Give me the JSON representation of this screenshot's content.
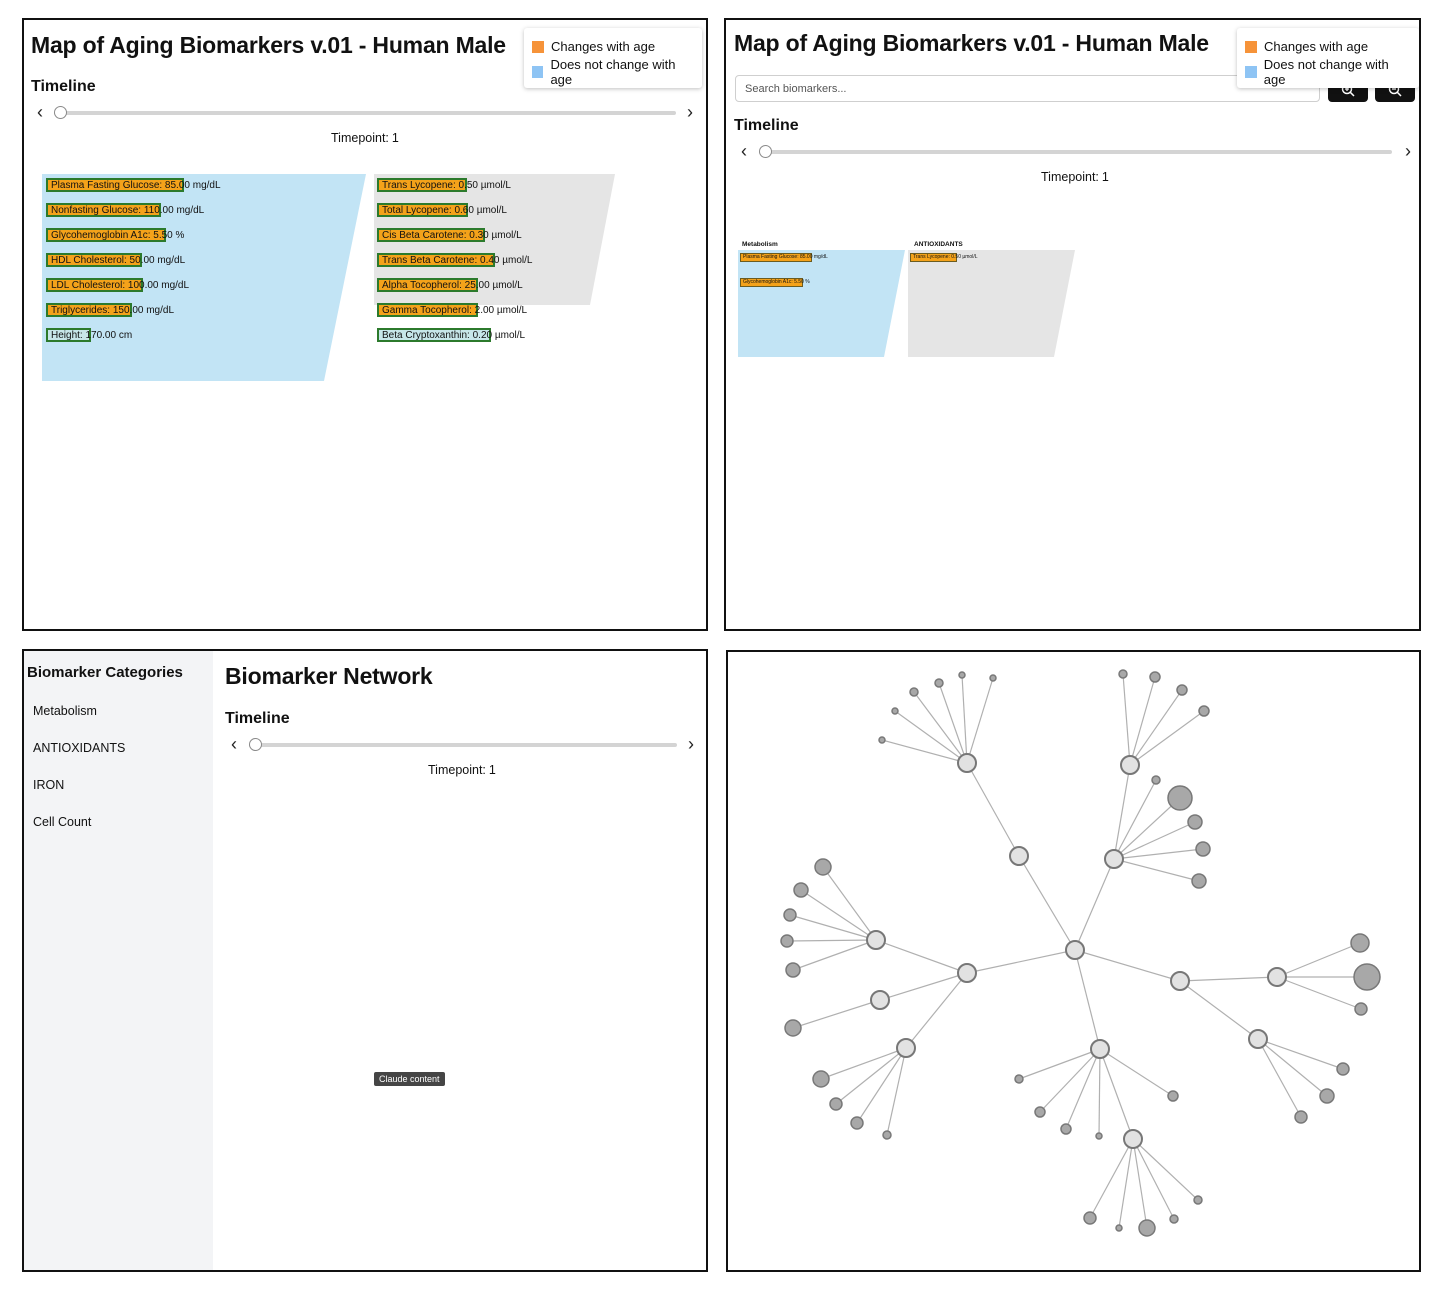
{
  "legend": {
    "changes": "Changes with age",
    "no_change": "Does not change with age",
    "colors": {
      "changes": "#f69339",
      "no_change": "#8ec4f4"
    }
  },
  "panel1": {
    "title": "Map of Aging Biomarkers v.01 - Human Male",
    "timeline_label": "Timeline",
    "timepoint_label": "Timepoint:",
    "timepoint_value": "1",
    "metabolism": [
      {
        "label": "Plasma Fasting Glucose: 85.00 mg/dL",
        "changes": true
      },
      {
        "label": "Nonfasting Glucose: 110.00 mg/dL",
        "changes": true
      },
      {
        "label": "Glycohemoglobin A1c: 5.50 %",
        "changes": true
      },
      {
        "label": "HDL Cholesterol: 50.00 mg/dL",
        "changes": true
      },
      {
        "label": "LDL Cholesterol: 100.00 mg/dL",
        "changes": true
      },
      {
        "label": "Triglycerides: 150.00 mg/dL",
        "changes": true
      },
      {
        "label": "Height: 170.00 cm",
        "changes": false
      }
    ],
    "antioxidants": [
      {
        "label": "Trans Lycopene: 0.50 µmol/L",
        "changes": true
      },
      {
        "label": "Total Lycopene: 0.60 µmol/L",
        "changes": true
      },
      {
        "label": "Cis Beta Carotene: 0.30 µmol/L",
        "changes": true
      },
      {
        "label": "Trans Beta Carotene: 0.40 µmol/L",
        "changes": true
      },
      {
        "label": "Alpha Tocopherol: 25.00 µmol/L",
        "changes": true
      },
      {
        "label": "Gamma Tocopherol: 2.00 µmol/L",
        "changes": true
      },
      {
        "label": "Beta Cryptoxanthin: 0.20 µmol/L",
        "changes": false
      }
    ]
  },
  "panel2": {
    "title": "Map of Aging Biomarkers v.01 - Human Male",
    "search_placeholder": "Search biomarkers...",
    "timeline_label": "Timeline",
    "timepoint_label": "Timepoint:",
    "timepoint_value": "1",
    "category_metabolism": "Metabolism",
    "category_antioxidants": "ANTIOXIDANTS",
    "metabolism": [
      {
        "label": "Plasma Fasting Glucose: 85.00 mg/dL"
      },
      {
        "label": "Glycohemoglobin A1c: 5.50 %"
      }
    ],
    "antioxidants": [
      {
        "label": "Trans Lycopene: 0.50 µmol/L"
      }
    ]
  },
  "panel3": {
    "sidebar_title": "Biomarker Categories",
    "categories": [
      "Metabolism",
      "ANTIOXIDANTS",
      "IRON",
      "Cell Count"
    ],
    "title": "Biomarker Network",
    "timeline_label": "Timeline",
    "timepoint_label": "Timepoint:",
    "timepoint_value": "1",
    "tooltip": "Claude content"
  }
}
